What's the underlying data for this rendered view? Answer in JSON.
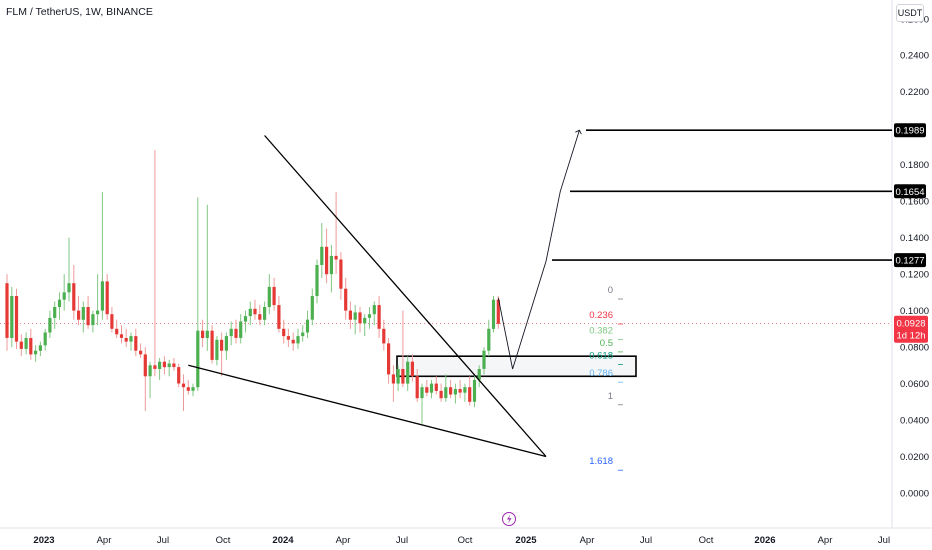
{
  "header": {
    "symbol_title": "FLM / TetherUS, 1W, BINANCE",
    "currency": "USDT"
  },
  "price_axis": {
    "ticks": [
      "0.2600",
      "0.2400",
      "0.2200",
      "0.1800",
      "0.1600",
      "0.1400",
      "0.1200",
      "0.1000",
      "0.0800",
      "0.0600",
      "0.0400",
      "0.0200",
      "0.0000"
    ]
  },
  "time_axis": {
    "labels": [
      "2023",
      "Apr",
      "Jul",
      "Oct",
      "2024",
      "Apr",
      "Jul",
      "Oct",
      "2025",
      "Apr",
      "Jul",
      "Oct",
      "2026",
      "Apr",
      "Jul"
    ]
  },
  "markers": {
    "current_price": "0.0928",
    "countdown": "1d 12h",
    "targets": [
      "0.1989",
      "0.1654",
      "0.1277"
    ]
  },
  "fib_levels": [
    {
      "label": "0",
      "color": "#787b86"
    },
    {
      "label": "0.236",
      "color": "#f23645"
    },
    {
      "label": "0.382",
      "color": "#81c784"
    },
    {
      "label": "0.5",
      "color": "#4caf50"
    },
    {
      "label": "0.618",
      "color": "#089981"
    },
    {
      "label": "0.786",
      "color": "#64b5f6"
    },
    {
      "label": "1",
      "color": "#787b86"
    },
    {
      "label": "1.618",
      "color": "#2962ff"
    }
  ],
  "colors": {
    "up": "#089981",
    "down": "#f23645",
    "up_candle": "#4caf50",
    "down_candle": "#e53935",
    "wick_up": "#81c784",
    "wick_down": "#ef9a9a",
    "event_icon": "#9c27b0"
  },
  "chart_data": {
    "type": "candlestick",
    "title": "FLM / TetherUS, 1W, BINANCE",
    "y_unit": "USDT",
    "ylim": [
      -0.005,
      0.265
    ],
    "x_range_weeks": [
      0,
      184
    ],
    "scale": "linear",
    "grid": false,
    "candles": [
      [
        0.115,
        0.12,
        0.078,
        0.085
      ],
      [
        0.085,
        0.113,
        0.08,
        0.108
      ],
      [
        0.108,
        0.112,
        0.079,
        0.083
      ],
      [
        0.083,
        0.087,
        0.075,
        0.079
      ],
      [
        0.079,
        0.088,
        0.076,
        0.085
      ],
      [
        0.085,
        0.09,
        0.073,
        0.076
      ],
      [
        0.076,
        0.081,
        0.072,
        0.078
      ],
      [
        0.078,
        0.083,
        0.075,
        0.081
      ],
      [
        0.081,
        0.09,
        0.078,
        0.088
      ],
      [
        0.088,
        0.1,
        0.085,
        0.096
      ],
      [
        0.096,
        0.105,
        0.09,
        0.102
      ],
      [
        0.102,
        0.11,
        0.095,
        0.106
      ],
      [
        0.106,
        0.12,
        0.1,
        0.11
      ],
      [
        0.11,
        0.14,
        0.105,
        0.115
      ],
      [
        0.115,
        0.125,
        0.095,
        0.1
      ],
      [
        0.1,
        0.108,
        0.092,
        0.095
      ],
      [
        0.095,
        0.105,
        0.088,
        0.102
      ],
      [
        0.102,
        0.108,
        0.09,
        0.092
      ],
      [
        0.092,
        0.1,
        0.088,
        0.098
      ],
      [
        0.098,
        0.12,
        0.092,
        0.1
      ],
      [
        0.1,
        0.165,
        0.095,
        0.116
      ],
      [
        0.116,
        0.12,
        0.095,
        0.098
      ],
      [
        0.098,
        0.102,
        0.088,
        0.09
      ],
      [
        0.09,
        0.095,
        0.085,
        0.087
      ],
      [
        0.087,
        0.092,
        0.082,
        0.085
      ],
      [
        0.085,
        0.09,
        0.08,
        0.083
      ],
      [
        0.083,
        0.088,
        0.078,
        0.086
      ],
      [
        0.086,
        0.09,
        0.075,
        0.078
      ],
      [
        0.078,
        0.082,
        0.074,
        0.076
      ],
      [
        0.076,
        0.08,
        0.045,
        0.064
      ],
      [
        0.064,
        0.072,
        0.052,
        0.07
      ],
      [
        0.07,
        0.188,
        0.064,
        0.068
      ],
      [
        0.068,
        0.074,
        0.062,
        0.072
      ],
      [
        0.072,
        0.075,
        0.065,
        0.069
      ],
      [
        0.069,
        0.073,
        0.064,
        0.071
      ],
      [
        0.071,
        0.074,
        0.067,
        0.069
      ],
      [
        0.069,
        0.071,
        0.058,
        0.06
      ],
      [
        0.06,
        0.065,
        0.045,
        0.058
      ],
      [
        0.058,
        0.062,
        0.054,
        0.056
      ],
      [
        0.056,
        0.06,
        0.053,
        0.058
      ],
      [
        0.058,
        0.162,
        0.056,
        0.089
      ],
      [
        0.089,
        0.095,
        0.08,
        0.085
      ],
      [
        0.085,
        0.158,
        0.078,
        0.089
      ],
      [
        0.089,
        0.092,
        0.071,
        0.073
      ],
      [
        0.073,
        0.086,
        0.07,
        0.084
      ],
      [
        0.084,
        0.088,
        0.064,
        0.078
      ],
      [
        0.078,
        0.088,
        0.073,
        0.086
      ],
      [
        0.086,
        0.094,
        0.081,
        0.09
      ],
      [
        0.09,
        0.095,
        0.082,
        0.085
      ],
      [
        0.085,
        0.098,
        0.082,
        0.094
      ],
      [
        0.094,
        0.1,
        0.088,
        0.097
      ],
      [
        0.097,
        0.105,
        0.092,
        0.101
      ],
      [
        0.101,
        0.106,
        0.095,
        0.098
      ],
      [
        0.098,
        0.103,
        0.092,
        0.095
      ],
      [
        0.095,
        0.105,
        0.092,
        0.102
      ],
      [
        0.102,
        0.12,
        0.098,
        0.113
      ],
      [
        0.113,
        0.118,
        0.1,
        0.103
      ],
      [
        0.103,
        0.108,
        0.088,
        0.09
      ],
      [
        0.09,
        0.095,
        0.082,
        0.086
      ],
      [
        0.086,
        0.09,
        0.08,
        0.084
      ],
      [
        0.084,
        0.088,
        0.078,
        0.082
      ],
      [
        0.082,
        0.09,
        0.079,
        0.086
      ],
      [
        0.086,
        0.092,
        0.083,
        0.088
      ],
      [
        0.088,
        0.1,
        0.085,
        0.095
      ],
      [
        0.095,
        0.112,
        0.092,
        0.108
      ],
      [
        0.108,
        0.128,
        0.104,
        0.125
      ],
      [
        0.125,
        0.148,
        0.118,
        0.135
      ],
      [
        0.135,
        0.145,
        0.115,
        0.12
      ],
      [
        0.12,
        0.136,
        0.11,
        0.13
      ],
      [
        0.13,
        0.165,
        0.12,
        0.128
      ],
      [
        0.128,
        0.132,
        0.106,
        0.112
      ],
      [
        0.112,
        0.118,
        0.095,
        0.1
      ],
      [
        0.1,
        0.105,
        0.09,
        0.095
      ],
      [
        0.095,
        0.103,
        0.087,
        0.099
      ],
      [
        0.099,
        0.102,
        0.088,
        0.093
      ],
      [
        0.093,
        0.098,
        0.086,
        0.096
      ],
      [
        0.096,
        0.102,
        0.09,
        0.098
      ],
      [
        0.098,
        0.105,
        0.092,
        0.103
      ],
      [
        0.103,
        0.108,
        0.085,
        0.09
      ],
      [
        0.09,
        0.095,
        0.078,
        0.082
      ],
      [
        0.082,
        0.085,
        0.06,
        0.065
      ],
      [
        0.065,
        0.07,
        0.05,
        0.06
      ],
      [
        0.06,
        0.07,
        0.056,
        0.068
      ],
      [
        0.068,
        0.1,
        0.058,
        0.06
      ],
      [
        0.06,
        0.075,
        0.056,
        0.072
      ],
      [
        0.072,
        0.076,
        0.061,
        0.064
      ],
      [
        0.064,
        0.068,
        0.05,
        0.052
      ],
      [
        0.052,
        0.06,
        0.038,
        0.058
      ],
      [
        0.058,
        0.062,
        0.053,
        0.055
      ],
      [
        0.055,
        0.062,
        0.052,
        0.06
      ],
      [
        0.06,
        0.064,
        0.054,
        0.056
      ],
      [
        0.056,
        0.06,
        0.05,
        0.052
      ],
      [
        0.052,
        0.065,
        0.05,
        0.058
      ],
      [
        0.058,
        0.062,
        0.052,
        0.054
      ],
      [
        0.054,
        0.06,
        0.049,
        0.057
      ],
      [
        0.057,
        0.062,
        0.052,
        0.055
      ],
      [
        0.055,
        0.06,
        0.05,
        0.058
      ],
      [
        0.058,
        0.064,
        0.048,
        0.05
      ],
      [
        0.05,
        0.065,
        0.047,
        0.062
      ],
      [
        0.062,
        0.07,
        0.058,
        0.068
      ],
      [
        0.068,
        0.08,
        0.065,
        0.078
      ],
      [
        0.078,
        0.095,
        0.075,
        0.09
      ],
      [
        0.09,
        0.108,
        0.088,
        0.106
      ],
      [
        0.106,
        0.108,
        0.09,
        0.0928
      ]
    ],
    "target_levels": [
      0.1989,
      0.1654,
      0.1277
    ],
    "current_price": 0.0928,
    "fib_retracement": {
      "levels": [
        0,
        0.236,
        0.382,
        0.5,
        0.618,
        0.786,
        1,
        1.618
      ],
      "high": 0.108,
      "low": 0.05
    },
    "support_box": [
      0.064,
      0.075
    ],
    "projection_path": [
      [
        103,
        0.107
      ],
      [
        106,
        0.068
      ],
      [
        113,
        0.127
      ],
      [
        116,
        0.1654
      ],
      [
        120,
        0.1989
      ]
    ],
    "trendlines": [
      [
        [
          54,
          0.196
        ],
        [
          113,
          0.02
        ]
      ],
      [
        [
          38,
          0.07
        ],
        [
          113,
          0.02
        ]
      ]
    ]
  }
}
